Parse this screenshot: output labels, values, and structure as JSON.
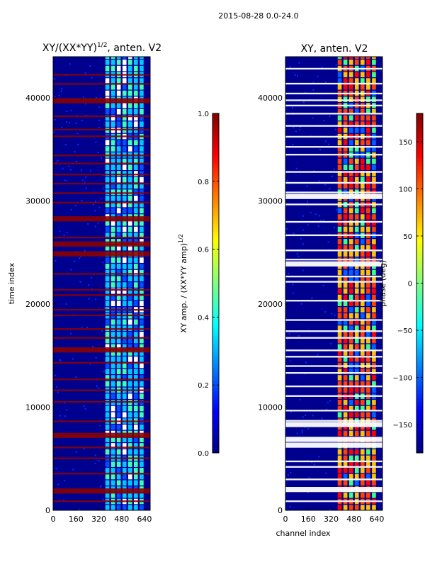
{
  "figure_title": "2015-08-28 0.0-24.0",
  "chart_data": [
    {
      "type": "heatmap",
      "title_main": "XY/(XX*YY)",
      "title_exp": "1/2",
      "title_suffix": ", anten. V2",
      "xlabel": "",
      "ylabel": "time index",
      "xlim": [
        0,
        680
      ],
      "ylim": [
        0,
        44000
      ],
      "xticks": [
        0,
        160,
        320,
        480,
        640
      ],
      "yticks": [
        0,
        10000,
        20000,
        30000,
        40000
      ],
      "active_channels": [
        360,
        640
      ],
      "cmap": "jet",
      "colorbar": {
        "label_main": "XY amp. / (XX*YY amp)",
        "label_exp": "1/2",
        "range": [
          0.0,
          1.0
        ],
        "ticks": [
          "0.0",
          "0.2",
          "0.4",
          "0.6",
          "0.8",
          "1.0"
        ],
        "tick_values": [
          0.0,
          0.2,
          0.4,
          0.6,
          0.8,
          1.0
        ]
      }
    },
    {
      "type": "heatmap",
      "title": "XY, anten. V2",
      "xlabel": "channel index",
      "ylabel": "",
      "xlim": [
        0,
        680
      ],
      "ylim": [
        0,
        44000
      ],
      "xticks": [
        0,
        160,
        320,
        480,
        640
      ],
      "yticks": [
        0,
        10000,
        20000,
        30000,
        40000
      ],
      "active_channels": [
        360,
        640
      ],
      "cmap": "jet",
      "colorbar": {
        "label": "phase (deg)",
        "range": [
          -180,
          180
        ],
        "ticks": [
          "−150",
          "−100",
          "−50",
          "0",
          "50",
          "100",
          "150"
        ],
        "tick_values": [
          -150,
          -100,
          -50,
          0,
          50,
          100,
          150
        ]
      }
    }
  ],
  "colors": {
    "background": "#00008f",
    "mid_blue": "#0030ff",
    "flag_red": "#8b0000",
    "gap_white": "#ffffff"
  }
}
